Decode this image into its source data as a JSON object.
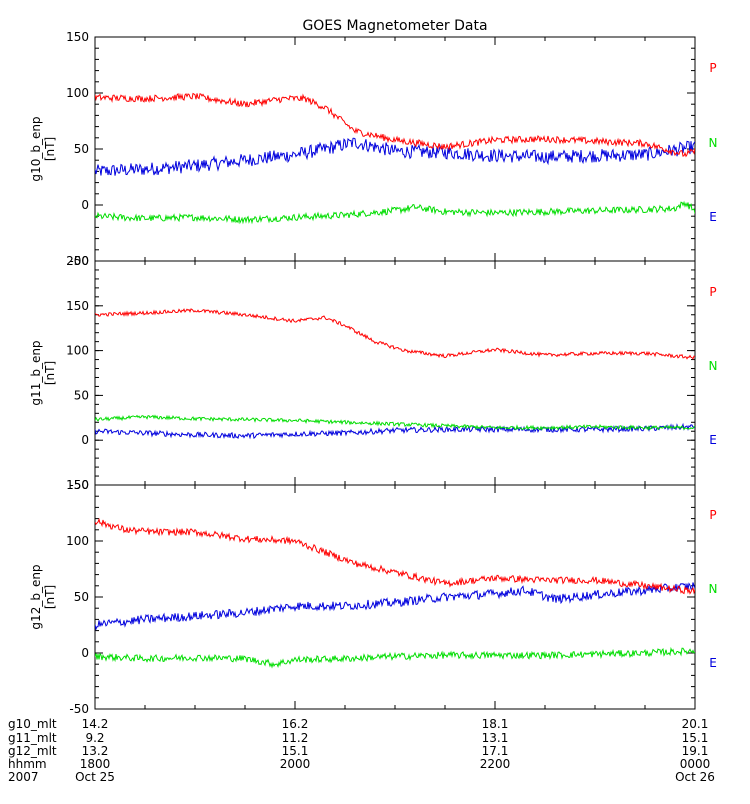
{
  "chart_data": {
    "type": "line",
    "title": "GOES Magnetometer Data",
    "x_range_hours": [
      18,
      24
    ],
    "x_major_ticks": [
      18,
      20,
      22,
      24
    ],
    "panels": [
      {
        "ylabel": "g10_b_enp",
        "yunit": "[nT]",
        "ylim": [
          -50,
          150
        ],
        "yticks": [
          -50,
          0,
          50,
          100,
          150
        ],
        "ytick_labels": [
          "-50",
          "0",
          "50",
          "100",
          "150"
        ],
        "series": [
          {
            "name": "P",
            "color": "#ff0000",
            "x": [
              18.0,
              18.5,
              19.0,
              19.5,
              19.9,
              20.1,
              20.3,
              20.6,
              21.0,
              21.5,
              22.0,
              22.5,
              23.0,
              23.5,
              23.9,
              24.0
            ],
            "y": [
              96,
              95,
              97,
              90,
              95,
              95,
              87,
              66,
              58,
              52,
              58,
              59,
              57,
              55,
              45,
              48
            ],
            "noise": 3
          },
          {
            "name": "N",
            "color": "#00dd00",
            "x": [
              18.0,
              18.5,
              19.0,
              19.5,
              20.0,
              20.5,
              21.0,
              21.2,
              21.5,
              22.0,
              22.5,
              23.0,
              23.5,
              23.8,
              23.9,
              24.0
            ],
            "y": [
              -10,
              -12,
              -11,
              -13,
              -11,
              -9,
              -5,
              -2,
              -6,
              -7,
              -6,
              -5,
              -4,
              -3,
              2,
              -5
            ],
            "noise": 3
          },
          {
            "name": "E",
            "color": "#0000dd",
            "x": [
              18.0,
              18.5,
              19.0,
              19.5,
              20.0,
              20.3,
              20.6,
              21.0,
              21.5,
              22.0,
              22.5,
              23.0,
              23.5,
              24.0
            ],
            "y": [
              30,
              32,
              35,
              40,
              45,
              50,
              56,
              48,
              47,
              44,
              43,
              44,
              45,
              52
            ],
            "noise": 6
          }
        ],
        "legend": [
          "P",
          "N",
          "E"
        ]
      },
      {
        "ylabel": "g11_b_enp",
        "yunit": "[nT]",
        "ylim": [
          -50,
          200
        ],
        "yticks": [
          -50,
          0,
          50,
          100,
          150,
          200
        ],
        "ytick_labels": [
          "-50",
          "0",
          "50",
          "100",
          "150",
          "200"
        ],
        "series": [
          {
            "name": "P",
            "color": "#ff0000",
            "x": [
              18.0,
              18.5,
              19.0,
              19.5,
              20.0,
              20.3,
              20.5,
              20.8,
              21.1,
              21.5,
              22.0,
              22.5,
              23.0,
              23.5,
              24.0
            ],
            "y": [
              140,
              142,
              145,
              140,
              133,
              137,
              128,
              110,
              100,
              94,
              101,
              95,
              97,
              97,
              92
            ],
            "noise": 2
          },
          {
            "name": "N",
            "color": "#00dd00",
            "x": [
              18.0,
              18.5,
              19.0,
              19.5,
              20.0,
              20.5,
              21.0,
              21.5,
              22.0,
              22.5,
              23.0,
              23.5,
              24.0
            ],
            "y": [
              23,
              26,
              24,
              23,
              22,
              20,
              18,
              16,
              14,
              14,
              15,
              14,
              14
            ],
            "noise": 2
          },
          {
            "name": "E",
            "color": "#0000dd",
            "x": [
              18.0,
              18.5,
              19.0,
              19.5,
              20.0,
              20.5,
              21.0,
              21.5,
              22.0,
              22.5,
              23.0,
              23.5,
              24.0
            ],
            "y": [
              10,
              8,
              6,
              5,
              7,
              8,
              11,
              12,
              12,
              12,
              12,
              13,
              15
            ],
            "noise": 3
          }
        ],
        "legend": [
          "P",
          "N",
          "E"
        ]
      },
      {
        "ylabel": "g12_b_enp",
        "yunit": "[nT]",
        "ylim": [
          -50,
          150
        ],
        "yticks": [
          -50,
          0,
          50,
          100,
          150
        ],
        "ytick_labels": [
          "-50",
          "0",
          "50",
          "100",
          "150"
        ],
        "series": [
          {
            "name": "P",
            "color": "#ff0000",
            "x": [
              18.0,
              18.3,
              18.6,
              19.0,
              19.5,
              20.0,
              20.3,
              20.6,
              21.0,
              21.5,
              22.0,
              22.5,
              23.0,
              23.5,
              24.0
            ],
            "y": [
              118,
              110,
              108,
              108,
              102,
              100,
              90,
              80,
              72,
              62,
              67,
              65,
              65,
              60,
              55
            ],
            "noise": 3
          },
          {
            "name": "N",
            "color": "#00dd00",
            "x": [
              18.0,
              18.5,
              19.0,
              19.5,
              19.8,
              20.0,
              20.5,
              21.0,
              21.5,
              22.0,
              22.5,
              23.0,
              23.5,
              24.0
            ],
            "y": [
              -3,
              -5,
              -4,
              -5,
              -10,
              -6,
              -5,
              -3,
              -2,
              -2,
              -2,
              -1,
              0,
              2
            ],
            "noise": 3
          },
          {
            "name": "E",
            "color": "#0000dd",
            "x": [
              18.0,
              18.5,
              19.0,
              19.5,
              20.0,
              20.5,
              21.0,
              21.5,
              22.0,
              22.3,
              22.6,
              23.0,
              23.5,
              24.0
            ],
            "y": [
              25,
              30,
              33,
              36,
              42,
              42,
              45,
              50,
              53,
              56,
              48,
              52,
              56,
              60
            ],
            "noise": 4
          }
        ],
        "legend": [
          "P",
          "N",
          "E"
        ]
      }
    ],
    "footer": {
      "rows": [
        {
          "label": "g10_mlt",
          "values": [
            "14.2",
            "16.2",
            "18.1",
            "20.1"
          ]
        },
        {
          "label": "g11_mlt",
          "values": [
            "9.2",
            "11.2",
            "13.1",
            "15.1"
          ]
        },
        {
          "label": "g12_mlt",
          "values": [
            "13.2",
            "15.1",
            "17.1",
            "19.1"
          ]
        },
        {
          "label": "hhmm",
          "values": [
            "1800",
            "2000",
            "2200",
            "0000"
          ]
        },
        {
          "label": "2007",
          "values": [
            "Oct 25",
            "",
            "",
            "Oct 26"
          ]
        }
      ]
    }
  }
}
